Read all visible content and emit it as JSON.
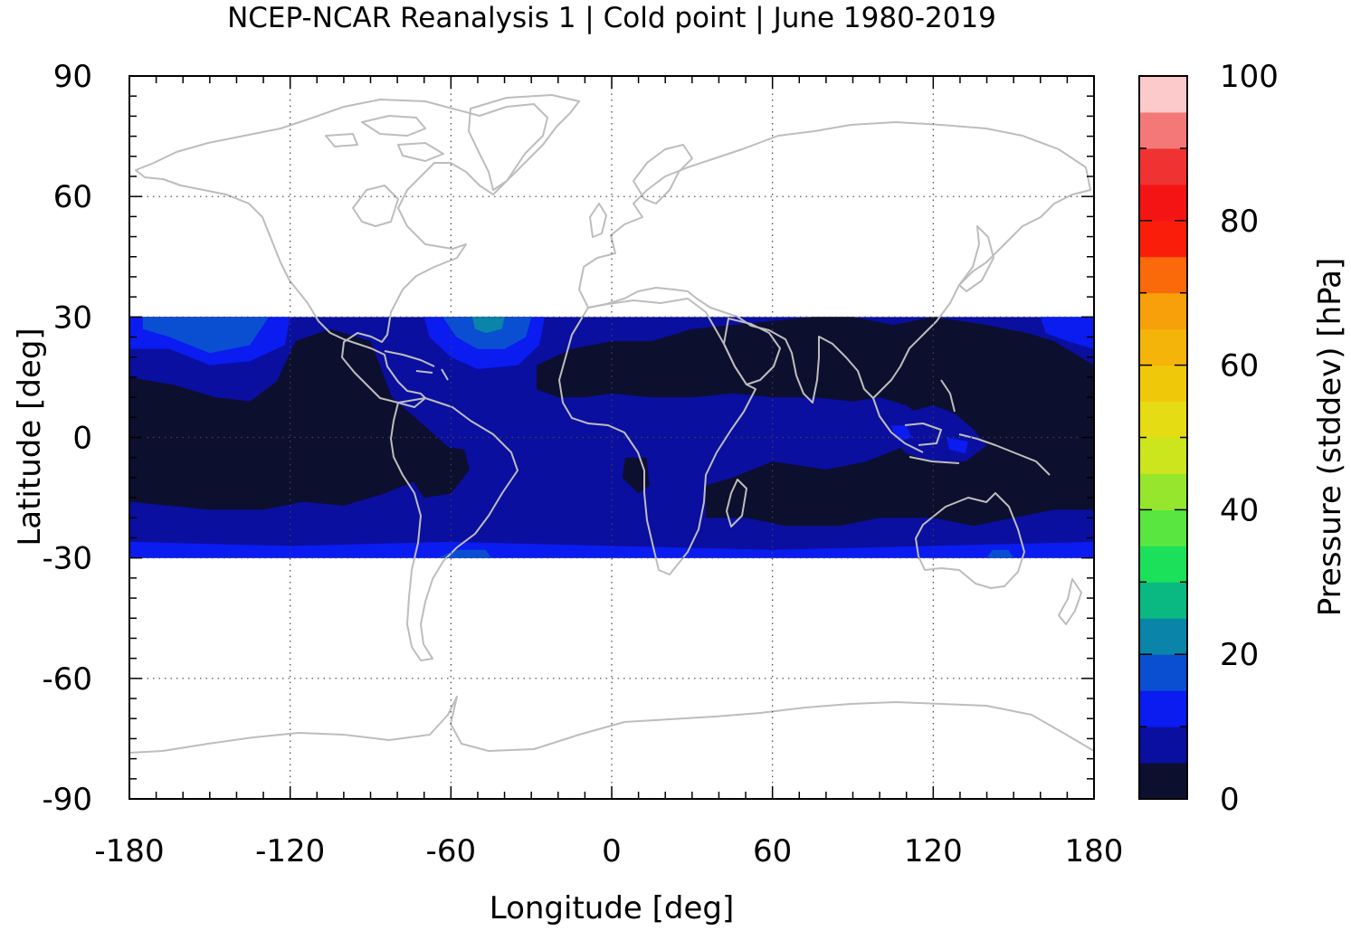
{
  "chart_data": {
    "type": "heatmap",
    "title": "NCEP-NCAR Reanalysis 1 | Cold point | June 1980-2019",
    "xlabel": "Longitude [deg]",
    "ylabel": "Latitude [deg]",
    "xlim": [
      -180,
      180
    ],
    "ylim": [
      -90,
      90
    ],
    "xticks": [
      "-180",
      "-120",
      "-60",
      "0",
      "60",
      "120",
      "180"
    ],
    "yticks": [
      "90",
      "60",
      "30",
      "0",
      "-30",
      "-60",
      "-90"
    ],
    "grid": true,
    "data_lat_range": [
      -30,
      30
    ],
    "colorbar": {
      "label": "Pressure (stddev) [hPa]",
      "range": [
        0,
        100
      ],
      "ticks": [
        "100",
        "80",
        "60",
        "40",
        "20",
        "0"
      ],
      "levels": [
        {
          "from": 0,
          "to": 5,
          "color": "#0d0f2e"
        },
        {
          "from": 5,
          "to": 10,
          "color": "#0a0fa0"
        },
        {
          "from": 10,
          "to": 15,
          "color": "#0a1cf0"
        },
        {
          "from": 15,
          "to": 20,
          "color": "#0a4fd2"
        },
        {
          "from": 20,
          "to": 25,
          "color": "#0a84a8"
        },
        {
          "from": 25,
          "to": 30,
          "color": "#0ab882"
        },
        {
          "from": 30,
          "to": 35,
          "color": "#1ae05a"
        },
        {
          "from": 35,
          "to": 40,
          "color": "#5ae640"
        },
        {
          "from": 40,
          "to": 45,
          "color": "#96e62d"
        },
        {
          "from": 45,
          "to": 50,
          "color": "#cce61e"
        },
        {
          "from": 50,
          "to": 55,
          "color": "#e6dc14"
        },
        {
          "from": 55,
          "to": 60,
          "color": "#f0c80a"
        },
        {
          "from": 60,
          "to": 65,
          "color": "#f5b40a"
        },
        {
          "from": 65,
          "to": 70,
          "color": "#f8a00a"
        },
        {
          "from": 70,
          "to": 75,
          "color": "#fa6a0a"
        },
        {
          "from": 75,
          "to": 80,
          "color": "#fa1e0a"
        },
        {
          "from": 80,
          "to": 85,
          "color": "#f51414"
        },
        {
          "from": 85,
          "to": 90,
          "color": "#f03232"
        },
        {
          "from": 90,
          "to": 95,
          "color": "#f57878"
        },
        {
          "from": 95,
          "to": 100,
          "color": "#fccaca"
        }
      ]
    },
    "regions": [
      {
        "name": "base-tropical-band",
        "color": "#0a0fa0",
        "lat": [
          -30,
          30
        ],
        "lon": [
          -180,
          180
        ]
      },
      {
        "name": "north-pacific-bright",
        "color": "#0a1cf0",
        "polygon": [
          [
            -180,
            30
          ],
          [
            -120,
            30
          ],
          [
            -122,
            23
          ],
          [
            -135,
            19
          ],
          [
            -150,
            18
          ],
          [
            -165,
            22
          ],
          [
            -180,
            22
          ]
        ]
      },
      {
        "name": "north-pacific-medium",
        "color": "#0a4fd2",
        "polygon": [
          [
            -175,
            30
          ],
          [
            -128,
            30
          ],
          [
            -135,
            23
          ],
          [
            -150,
            21
          ],
          [
            -165,
            25
          ],
          [
            -175,
            27
          ]
        ]
      },
      {
        "name": "north-atlantic-bright",
        "color": "#0a1cf0",
        "polygon": [
          [
            -70,
            30
          ],
          [
            -25,
            30
          ],
          [
            -27,
            23
          ],
          [
            -35,
            18
          ],
          [
            -50,
            17
          ],
          [
            -60,
            20
          ],
          [
            -68,
            25
          ]
        ]
      },
      {
        "name": "north-atlantic-medium",
        "color": "#0a4fd2",
        "polygon": [
          [
            -63,
            30
          ],
          [
            -30,
            30
          ],
          [
            -32,
            25
          ],
          [
            -40,
            22
          ],
          [
            -50,
            22
          ],
          [
            -58,
            25
          ]
        ]
      },
      {
        "name": "north-atlantic-teal",
        "color": "#0a84a8",
        "polygon": [
          [
            -52,
            30
          ],
          [
            -40,
            30
          ],
          [
            -41,
            27
          ],
          [
            -47,
            26
          ],
          [
            -51,
            27
          ]
        ]
      },
      {
        "name": "west-pacific-north-bright",
        "color": "#0a1cf0",
        "polygon": [
          [
            160,
            30
          ],
          [
            180,
            30
          ],
          [
            180,
            22
          ],
          [
            170,
            24
          ],
          [
            162,
            26
          ]
        ]
      },
      {
        "name": "south-band-bright",
        "color": "#0a1cf0",
        "polygon": [
          [
            -180,
            -30
          ],
          [
            180,
            -30
          ],
          [
            180,
            -26
          ],
          [
            120,
            -27
          ],
          [
            60,
            -28
          ],
          [
            0,
            -27
          ],
          [
            -60,
            -26
          ],
          [
            -120,
            -27
          ],
          [
            -180,
            -26
          ]
        ]
      },
      {
        "name": "south-band-medium-a",
        "color": "#0a4fd2",
        "polygon": [
          [
            -65,
            -30
          ],
          [
            -45,
            -30
          ],
          [
            -47,
            -28
          ],
          [
            -58,
            -28
          ]
        ]
      },
      {
        "name": "south-band-medium-b",
        "color": "#0a4fd2",
        "polygon": [
          [
            140,
            -30
          ],
          [
            150,
            -30
          ],
          [
            148,
            -28
          ],
          [
            142,
            -28
          ]
        ]
      },
      {
        "name": "pacific-dark-core",
        "color": "#0d0f2e",
        "polygon": [
          [
            -180,
            15
          ],
          [
            -163,
            13
          ],
          [
            -148,
            10
          ],
          [
            -135,
            9
          ],
          [
            -125,
            14
          ],
          [
            -118,
            24
          ],
          [
            -105,
            27
          ],
          [
            -90,
            24
          ],
          [
            -82,
            10
          ],
          [
            -70,
            3
          ],
          [
            -60,
            -3
          ],
          [
            -70,
            -10
          ],
          [
            -85,
            -14
          ],
          [
            -100,
            -17
          ],
          [
            -115,
            -16
          ],
          [
            -130,
            -18
          ],
          [
            -150,
            -18
          ],
          [
            -165,
            -17
          ],
          [
            -180,
            -16
          ]
        ]
      },
      {
        "name": "amazon-dark",
        "color": "#0d0f2e",
        "polygon": [
          [
            -78,
            -2
          ],
          [
            -65,
            -2
          ],
          [
            -55,
            -3
          ],
          [
            -53,
            -8
          ],
          [
            -60,
            -14
          ],
          [
            -70,
            -15
          ],
          [
            -75,
            -10
          ]
        ]
      },
      {
        "name": "africa-india-dark",
        "color": "#0d0f2e",
        "polygon": [
          [
            -28,
            18
          ],
          [
            -15,
            22
          ],
          [
            0,
            24
          ],
          [
            15,
            24
          ],
          [
            30,
            27
          ],
          [
            45,
            28
          ],
          [
            60,
            29
          ],
          [
            75,
            30
          ],
          [
            90,
            30
          ],
          [
            105,
            28
          ],
          [
            120,
            30
          ],
          [
            140,
            28
          ],
          [
            155,
            26
          ],
          [
            165,
            24
          ],
          [
            180,
            18
          ],
          [
            180,
            -18
          ],
          [
            165,
            -18
          ],
          [
            150,
            -20
          ],
          [
            135,
            -22
          ],
          [
            120,
            -20
          ],
          [
            100,
            -20
          ],
          [
            85,
            -22
          ],
          [
            65,
            -22
          ],
          [
            50,
            -20
          ],
          [
            35,
            -20
          ],
          [
            35,
            -12
          ],
          [
            45,
            -10
          ],
          [
            60,
            -6
          ],
          [
            80,
            -8
          ],
          [
            95,
            -6
          ],
          [
            110,
            -2
          ],
          [
            120,
            3
          ],
          [
            110,
            8
          ],
          [
            100,
            10
          ],
          [
            90,
            9
          ],
          [
            75,
            10
          ],
          [
            60,
            10
          ],
          [
            45,
            11
          ],
          [
            30,
            10
          ],
          [
            15,
            10
          ],
          [
            0,
            11
          ],
          [
            -10,
            10
          ],
          [
            -20,
            10
          ],
          [
            -28,
            12
          ]
        ]
      },
      {
        "name": "indonesia-blue-pocket",
        "color": "#0a0fa0",
        "polygon": [
          [
            103,
            5
          ],
          [
            120,
            8
          ],
          [
            128,
            6
          ],
          [
            135,
            2
          ],
          [
            140,
            -2
          ],
          [
            132,
            -6
          ],
          [
            120,
            -6
          ],
          [
            110,
            -4
          ],
          [
            104,
            0
          ]
        ]
      },
      {
        "name": "indonesia-bright-pocket",
        "color": "#0a1cf0",
        "polygon": [
          [
            104,
            3
          ],
          [
            110,
            3
          ],
          [
            112,
            0
          ],
          [
            107,
            -1
          ]
        ]
      },
      {
        "name": "indonesia-bright-pocket-b",
        "color": "#0a1cf0",
        "polygon": [
          [
            125,
            0
          ],
          [
            133,
            -1
          ],
          [
            132,
            -4
          ],
          [
            126,
            -3
          ]
        ]
      },
      {
        "name": "gulf-of-guinea-dark",
        "color": "#0d0f2e",
        "polygon": [
          [
            5,
            -5
          ],
          [
            13,
            -5
          ],
          [
            14,
            -12
          ],
          [
            10,
            -14
          ],
          [
            4,
            -10
          ]
        ]
      }
    ]
  }
}
